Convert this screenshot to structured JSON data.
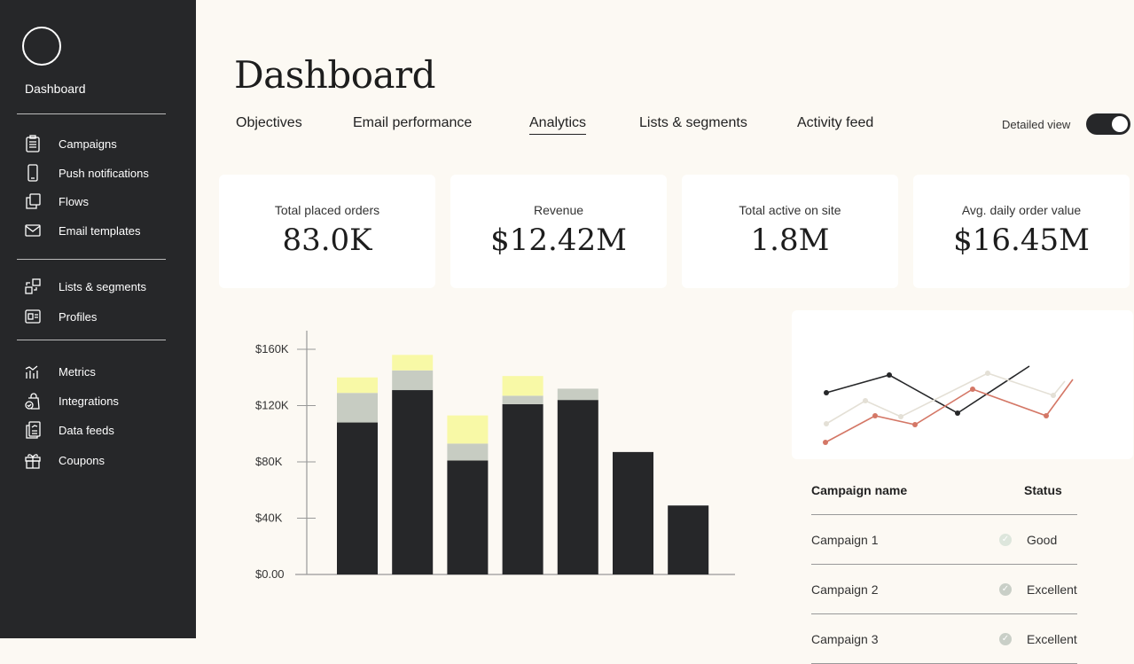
{
  "sidebar": {
    "title": "Dashboard",
    "groups": [
      [
        {
          "label": "Campaigns",
          "icon": "clipboard-icon"
        },
        {
          "label": "Push notifications",
          "icon": "phone-icon"
        },
        {
          "label": "Flows",
          "icon": "copy-icon"
        },
        {
          "label": "Email templates",
          "icon": "envelope-icon"
        }
      ],
      [
        {
          "label": "Lists & segments",
          "icon": "segments-icon"
        },
        {
          "label": "Profiles",
          "icon": "profile-card-icon"
        }
      ],
      [
        {
          "label": "Metrics",
          "icon": "metrics-icon"
        },
        {
          "label": "Integrations",
          "icon": "bag-check-icon"
        },
        {
          "label": "Data feeds",
          "icon": "data-feed-icon"
        },
        {
          "label": "Coupons",
          "icon": "gift-icon"
        }
      ]
    ]
  },
  "header": {
    "title": "Dashboard",
    "tabs": [
      "Objectives",
      "Email performance",
      "Analytics",
      "Lists & segments",
      "Activity feed"
    ],
    "active_tab": "Analytics",
    "detailed_view_label": "Detailed view",
    "detailed_view_on": true
  },
  "kpis": [
    {
      "label": "Total placed orders",
      "value": "83.0K"
    },
    {
      "label": "Revenue",
      "value": "$12.42M"
    },
    {
      "label": "Total active on site",
      "value": "1.8M"
    },
    {
      "label": "Avg. daily order value",
      "value": "$16.45M"
    }
  ],
  "chart_data": [
    {
      "type": "bar",
      "stacked": true,
      "ylim": [
        0,
        170000
      ],
      "yticks": [
        "$0.00",
        "$40K",
        "$80K",
        "$120K",
        "$160K"
      ],
      "ytick_values": [
        0,
        40000,
        80000,
        120000,
        160000
      ],
      "colors": [
        "#262729",
        "#c7ccc2",
        "#f8f9a6"
      ],
      "series": [
        {
          "values": [
            108000,
            131000,
            81000,
            121000,
            124000,
            87000,
            49000
          ]
        },
        {
          "values": [
            21000,
            14000,
            12000,
            6000,
            8000,
            0,
            0
          ]
        },
        {
          "values": [
            11000,
            11000,
            20000,
            14000,
            0,
            0,
            0
          ]
        }
      ]
    },
    {
      "type": "line",
      "series": [
        {
          "color": "#262729",
          "points": [
            [
              0,
              77
            ],
            [
              1,
              97
            ],
            [
              2,
              54
            ],
            [
              3,
              107
            ]
          ]
        },
        {
          "color": "#e4e0d6",
          "points": [
            [
              0,
              42
            ],
            [
              1,
              68
            ],
            [
              2,
              50
            ],
            [
              3,
              99
            ],
            [
              4,
              74
            ],
            [
              5,
              90
            ]
          ]
        },
        {
          "color": "#d47766",
          "points": [
            [
              0,
              21
            ],
            [
              1,
              51
            ],
            [
              2,
              41
            ],
            [
              3,
              81
            ],
            [
              4,
              51
            ],
            [
              5,
              92
            ]
          ]
        }
      ]
    }
  ],
  "table": {
    "headers": [
      "Campaign name",
      "Status"
    ],
    "rows": [
      {
        "name": "Campaign 1",
        "status": "Good"
      },
      {
        "name": "Campaign 2",
        "status": "Excellent"
      },
      {
        "name": "Campaign 3",
        "status": "Excellent"
      }
    ]
  }
}
